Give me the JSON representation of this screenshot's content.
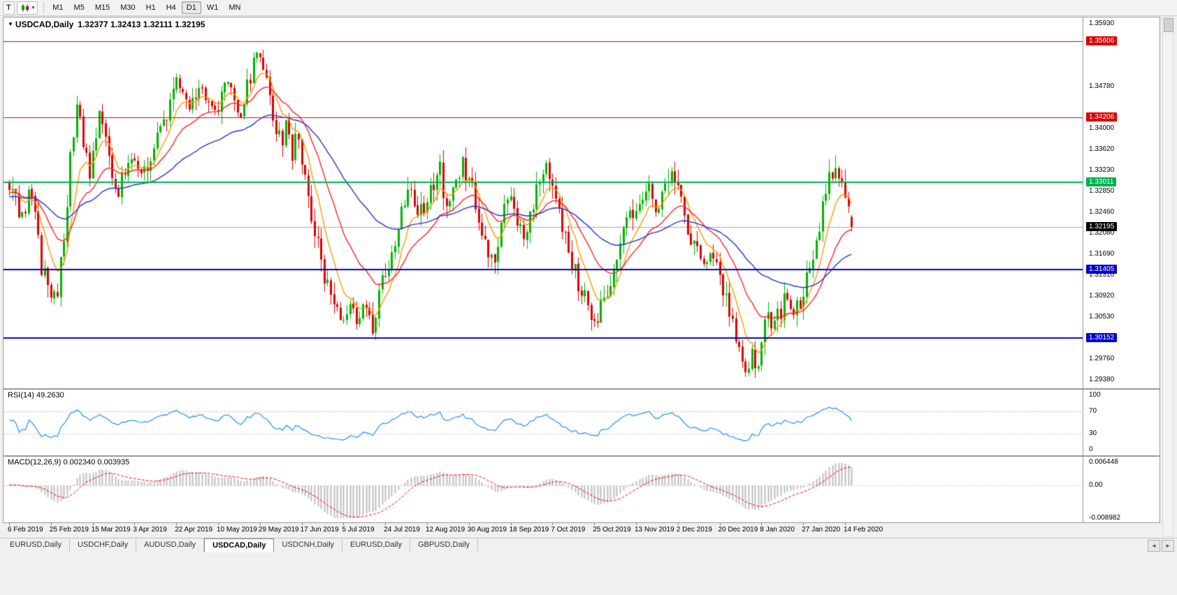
{
  "toolbar": {
    "t_button": "T",
    "chart_type_caret": "▾",
    "timeframes": [
      "M1",
      "M5",
      "M15",
      "M30",
      "H1",
      "H4",
      "D1",
      "W1",
      "MN"
    ],
    "active_timeframe": "D1"
  },
  "chart": {
    "title_arrow": "▼",
    "title": "USDCAD,Daily",
    "ohlc_text": "1.32377 1.32413 1.32111 1.32195",
    "ohlc": {
      "open": 1.32377,
      "high": 1.32413,
      "low": 1.32111,
      "close": 1.32195
    }
  },
  "price_axis": {
    "max": 1.3593,
    "min": 1.2938,
    "ticks": [
      "1.35930",
      "1.34780",
      "1.34000",
      "1.33620",
      "1.33230",
      "1.32850",
      "1.32460",
      "1.32080",
      "1.31690",
      "1.31310",
      "1.30920",
      "1.30530",
      "1.29760",
      "1.29380"
    ]
  },
  "levels": [
    {
      "price": 1.35606,
      "label": "1.35606",
      "color": "#dd0000",
      "width": 1
    },
    {
      "price": 1.34206,
      "label": "1.34206",
      "color": "#dd0000",
      "width": 1
    },
    {
      "price": 1.33011,
      "label": "1.33011",
      "color": "#00b050",
      "width": 2
    },
    {
      "price": 1.31405,
      "label": "1.31405",
      "color": "#0000cc",
      "width": 2
    },
    {
      "price": 1.30152,
      "label": "1.30152",
      "color": "#0000cc",
      "width": 2
    }
  ],
  "current_price": {
    "value": 1.32195,
    "label": "1.32195",
    "line_color": "#aaaaaa",
    "label_bg": "#000000"
  },
  "rsi": {
    "label": "RSI(14) 49.2630",
    "period": 14,
    "value": 49.263,
    "line_color": "#1E90FF",
    "levels": [
      {
        "value": 100,
        "label": "100"
      },
      {
        "value": 70,
        "label": "70"
      },
      {
        "value": 30,
        "label": "30"
      },
      {
        "value": 0,
        "label": "0"
      }
    ]
  },
  "macd": {
    "label": "MACD(12,26,9) 0.002340 0.003935",
    "fast": 12,
    "slow": 26,
    "signal": 9,
    "main_value": 0.00234,
    "signal_value": 0.003935,
    "max": 0.006448,
    "min": -0.008982,
    "hist_color": "#bdbdbd",
    "signal_color": "#ff0000",
    "axis": [
      {
        "value": 0.006448,
        "label": "0.006448"
      },
      {
        "value": 0,
        "label": "0.00"
      },
      {
        "value": -0.008982,
        "label": "-0.008982"
      }
    ]
  },
  "dates": [
    "6 Feb 2019",
    "25 Feb 2019",
    "15 Mar 2019",
    "3 Apr 2019",
    "22 Apr 2019",
    "10 May 2019",
    "29 May 2019",
    "17 Jun 2019",
    "5 Jul 2019",
    "24 Jul 2019",
    "12 Aug 2019",
    "30 Aug 2019",
    "18 Sep 2019",
    "7 Oct 2019",
    "25 Oct 2019",
    "13 Nov 2019",
    "2 Dec 2019",
    "20 Dec 2019",
    "8 Jan 2020",
    "27 Jan 2020",
    "14 Feb 2020"
  ],
  "tabs": [
    {
      "label": "EURUSD,Daily",
      "active": false
    },
    {
      "label": "USDCHF,Daily",
      "active": false
    },
    {
      "label": "AUDUSD,Daily",
      "active": false
    },
    {
      "label": "USDCAD,Daily",
      "active": true
    },
    {
      "label": "USDCNH,Daily",
      "active": false
    },
    {
      "label": "EURUSD,Daily",
      "active": false
    },
    {
      "label": "GBPUSD,Daily",
      "active": false
    }
  ],
  "tab_scroll": {
    "left": "◄",
    "right": "►"
  },
  "chart_data": {
    "type": "candlestick",
    "symbol": "USDCAD",
    "timeframe": "Daily",
    "title": "USDCAD,Daily",
    "x_labels": [
      "6 Feb 2019",
      "25 Feb 2019",
      "15 Mar 2019",
      "3 Apr 2019",
      "22 Apr 2019",
      "10 May 2019",
      "29 May 2019",
      "17 Jun 2019",
      "5 Jul 2019",
      "24 Jul 2019",
      "12 Aug 2019",
      "30 Aug 2019",
      "18 Sep 2019",
      "7 Oct 2019",
      "25 Oct 2019",
      "13 Nov 2019",
      "2 Dec 2019",
      "20 Dec 2019",
      "8 Jan 2020",
      "27 Jan 2020",
      "14 Feb 2020"
    ],
    "candles_per_label": 13,
    "num_candles": 263,
    "preroll_candles": 60,
    "price_range": [
      1.2938,
      1.3593
    ],
    "colors": {
      "bull": "#00b300",
      "bear": "#dd0000"
    },
    "moving_averages": [
      {
        "period": 8,
        "type": "ema",
        "color": "#ff9900"
      },
      {
        "period": 21,
        "type": "ema",
        "color": "#ff2222"
      },
      {
        "period": 55,
        "type": "ema",
        "color": "#2233cc"
      }
    ],
    "horizontal_levels": [
      1.35606,
      1.34206,
      1.33011,
      1.31405,
      1.30152
    ],
    "last_close": 1.32195,
    "close_path_anchors": [
      [
        -60,
        1.3235
      ],
      [
        -30,
        1.33
      ],
      [
        -10,
        1.3265
      ],
      [
        0,
        1.3298
      ],
      [
        2,
        1.327
      ],
      [
        4,
        1.3245
      ],
      [
        6,
        1.3285
      ],
      [
        8,
        1.324
      ],
      [
        10,
        1.315
      ],
      [
        12,
        1.311
      ],
      [
        13,
        1.3085
      ],
      [
        15,
        1.311
      ],
      [
        17,
        1.318
      ],
      [
        19,
        1.335
      ],
      [
        21,
        1.345
      ],
      [
        23,
        1.338
      ],
      [
        25,
        1.331
      ],
      [
        27,
        1.34
      ],
      [
        28,
        1.3425
      ],
      [
        30,
        1.338
      ],
      [
        32,
        1.333
      ],
      [
        34,
        1.3285
      ],
      [
        36,
        1.332
      ],
      [
        39,
        1.335
      ],
      [
        41,
        1.331
      ],
      [
        43,
        1.334
      ],
      [
        45,
        1.337
      ],
      [
        47,
        1.339
      ],
      [
        49,
        1.342
      ],
      [
        51,
        1.347
      ],
      [
        52,
        1.3495
      ],
      [
        54,
        1.345
      ],
      [
        56,
        1.343
      ],
      [
        58,
        1.3455
      ],
      [
        60,
        1.347
      ],
      [
        62,
        1.344
      ],
      [
        64,
        1.344
      ],
      [
        66,
        1.346
      ],
      [
        68,
        1.348
      ],
      [
        70,
        1.3455
      ],
      [
        72,
        1.3435
      ],
      [
        74,
        1.348
      ],
      [
        76,
        1.3525
      ],
      [
        78,
        1.355
      ],
      [
        79,
        1.352
      ],
      [
        81,
        1.3455
      ],
      [
        83,
        1.341
      ],
      [
        85,
        1.3385
      ],
      [
        86,
        1.3415
      ],
      [
        88,
        1.335
      ],
      [
        89,
        1.341
      ],
      [
        91,
        1.333
      ],
      [
        93,
        1.327
      ],
      [
        95,
        1.321
      ],
      [
        97,
        1.315
      ],
      [
        99,
        1.311
      ],
      [
        101,
        1.3085
      ],
      [
        103,
        1.306
      ],
      [
        104,
        1.3045
      ],
      [
        106,
        1.307
      ],
      [
        108,
        1.305
      ],
      [
        110,
        1.308
      ],
      [
        112,
        1.305
      ],
      [
        113,
        1.3042
      ],
      [
        115,
        1.3095
      ],
      [
        117,
        1.3125
      ],
      [
        119,
        1.318
      ],
      [
        121,
        1.3225
      ],
      [
        123,
        1.326
      ],
      [
        125,
        1.3295
      ],
      [
        127,
        1.3235
      ],
      [
        129,
        1.326
      ],
      [
        130,
        1.327
      ],
      [
        132,
        1.3305
      ],
      [
        134,
        1.332
      ],
      [
        136,
        1.326
      ],
      [
        138,
        1.3285
      ],
      [
        140,
        1.332
      ],
      [
        141,
        1.334
      ],
      [
        143,
        1.331
      ],
      [
        145,
        1.326
      ],
      [
        147,
        1.32
      ],
      [
        149,
        1.3155
      ],
      [
        150,
        1.3148
      ],
      [
        152,
        1.32
      ],
      [
        154,
        1.3255
      ],
      [
        156,
        1.329
      ],
      [
        158,
        1.323
      ],
      [
        160,
        1.32
      ],
      [
        162,
        1.3255
      ],
      [
        164,
        1.329
      ],
      [
        166,
        1.333
      ],
      [
        168,
        1.332
      ],
      [
        169,
        1.33
      ],
      [
        171,
        1.325
      ],
      [
        173,
        1.32
      ],
      [
        175,
        1.3155
      ],
      [
        177,
        1.312
      ],
      [
        179,
        1.3085
      ],
      [
        181,
        1.306
      ],
      [
        183,
        1.3052
      ],
      [
        185,
        1.309
      ],
      [
        187,
        1.313
      ],
      [
        189,
        1.317
      ],
      [
        191,
        1.32
      ],
      [
        193,
        1.3235
      ],
      [
        195,
        1.3258
      ],
      [
        197,
        1.328
      ],
      [
        199,
        1.3295
      ],
      [
        201,
        1.3245
      ],
      [
        203,
        1.328
      ],
      [
        205,
        1.3305
      ],
      [
        206,
        1.3318
      ],
      [
        208,
        1.3285
      ],
      [
        210,
        1.3245
      ],
      [
        212,
        1.3205
      ],
      [
        214,
        1.317
      ],
      [
        216,
        1.3148
      ],
      [
        218,
        1.3165
      ],
      [
        220,
        1.315
      ],
      [
        221,
        1.313
      ],
      [
        223,
        1.3085
      ],
      [
        225,
        1.303
      ],
      [
        227,
        1.298
      ],
      [
        229,
        1.2958
      ],
      [
        231,
        1.299
      ],
      [
        233,
        1.2962
      ],
      [
        234,
        1.3005
      ],
      [
        236,
        1.306
      ],
      [
        238,
        1.304
      ],
      [
        240,
        1.3065
      ],
      [
        242,
        1.309
      ],
      [
        244,
        1.306
      ],
      [
        246,
        1.308
      ],
      [
        247,
        1.3105
      ],
      [
        249,
        1.315
      ],
      [
        251,
        1.3205
      ],
      [
        253,
        1.3255
      ],
      [
        255,
        1.33
      ],
      [
        256,
        1.332
      ],
      [
        258,
        1.3295
      ],
      [
        260,
        1.3282
      ],
      [
        261,
        1.325
      ],
      [
        262,
        1.32195
      ]
    ]
  }
}
